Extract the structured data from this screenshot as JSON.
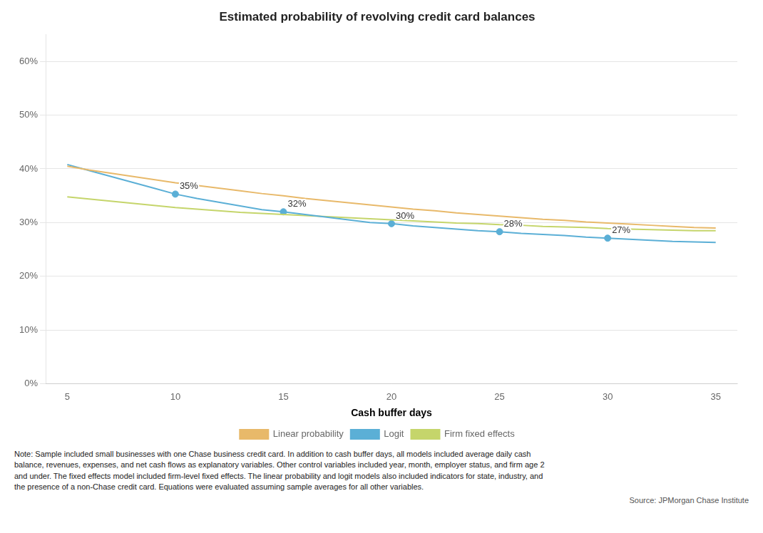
{
  "chart_data": {
    "type": "line",
    "title": "Estimated probability of revolving credit card balances",
    "x_label": "Cash buffer days",
    "x": [
      5,
      6,
      7,
      8,
      9,
      10,
      11,
      12,
      13,
      14,
      15,
      16,
      17,
      18,
      19,
      20,
      21,
      22,
      23,
      24,
      25,
      26,
      27,
      28,
      29,
      30,
      31,
      32,
      33,
      34,
      35
    ],
    "series": [
      {
        "name": "Linear probability",
        "color": "#e8b96a",
        "values": [
          40.5,
          39.8,
          39.2,
          38.6,
          38.0,
          37.4,
          36.9,
          36.4,
          35.9,
          35.4,
          35.0,
          34.5,
          34.1,
          33.7,
          33.3,
          32.9,
          32.5,
          32.2,
          31.8,
          31.5,
          31.2,
          30.9,
          30.6,
          30.4,
          30.1,
          29.9,
          29.7,
          29.5,
          29.3,
          29.1,
          29.0
        ]
      },
      {
        "name": "Logit",
        "color": "#5bafd6",
        "values": [
          40.8,
          39.7,
          38.6,
          37.5,
          36.4,
          35.3,
          34.5,
          33.8,
          33.1,
          32.4,
          32.0,
          31.5,
          31.0,
          30.5,
          30.0,
          29.8,
          29.4,
          29.1,
          28.8,
          28.5,
          28.3,
          28.0,
          27.8,
          27.6,
          27.3,
          27.1,
          26.9,
          26.7,
          26.5,
          26.4,
          26.3
        ],
        "annotations": [
          {
            "x": 10,
            "y": 35.3,
            "label": "35%"
          },
          {
            "x": 15,
            "y": 32.0,
            "label": "32%"
          },
          {
            "x": 20,
            "y": 29.8,
            "label": "30%"
          },
          {
            "x": 25,
            "y": 28.3,
            "label": "28%"
          },
          {
            "x": 30,
            "y": 27.1,
            "label": "27%"
          }
        ]
      },
      {
        "name": "Firm fixed effects",
        "color": "#c5d56b",
        "values": [
          34.8,
          34.4,
          34.0,
          33.6,
          33.2,
          32.8,
          32.5,
          32.2,
          31.9,
          31.7,
          31.5,
          31.3,
          31.1,
          30.9,
          30.7,
          30.5,
          30.3,
          30.1,
          29.9,
          29.8,
          29.6,
          29.5,
          29.3,
          29.2,
          29.1,
          28.9,
          28.8,
          28.7,
          28.6,
          28.5,
          28.5
        ]
      }
    ],
    "xlim": [
      4,
      36
    ],
    "xticks": [
      5,
      10,
      15,
      20,
      25,
      30,
      35
    ],
    "ylim": [
      0,
      65
    ],
    "yticks": [
      {
        "value": 0,
        "label": "0%"
      },
      {
        "value": 10,
        "label": "10%"
      },
      {
        "value": 20,
        "label": "20%"
      },
      {
        "value": 30,
        "label": "30%"
      },
      {
        "value": 40,
        "label": "40%"
      },
      {
        "value": 50,
        "label": "50%"
      },
      {
        "value": 60,
        "label": "60%"
      }
    ],
    "grid": "y",
    "legend": "bottom",
    "note": "Note: Sample included small businesses with one Chase business credit card. In addition to cash buffer days, all models included average daily cash\nbalance, revenues, expenses, and net cash flows as explanatory variables. Other control variables included year, month, employer status, and firm age 2\nand under. The fixed effects model included firm-level fixed effects. The linear probability and logit models also included indicators for state, industry, and\nthe presence of a non-Chase credit card. Equations were evaluated assuming sample averages for all other variables.",
    "source": "Source: JPMorgan Chase Institute"
  }
}
